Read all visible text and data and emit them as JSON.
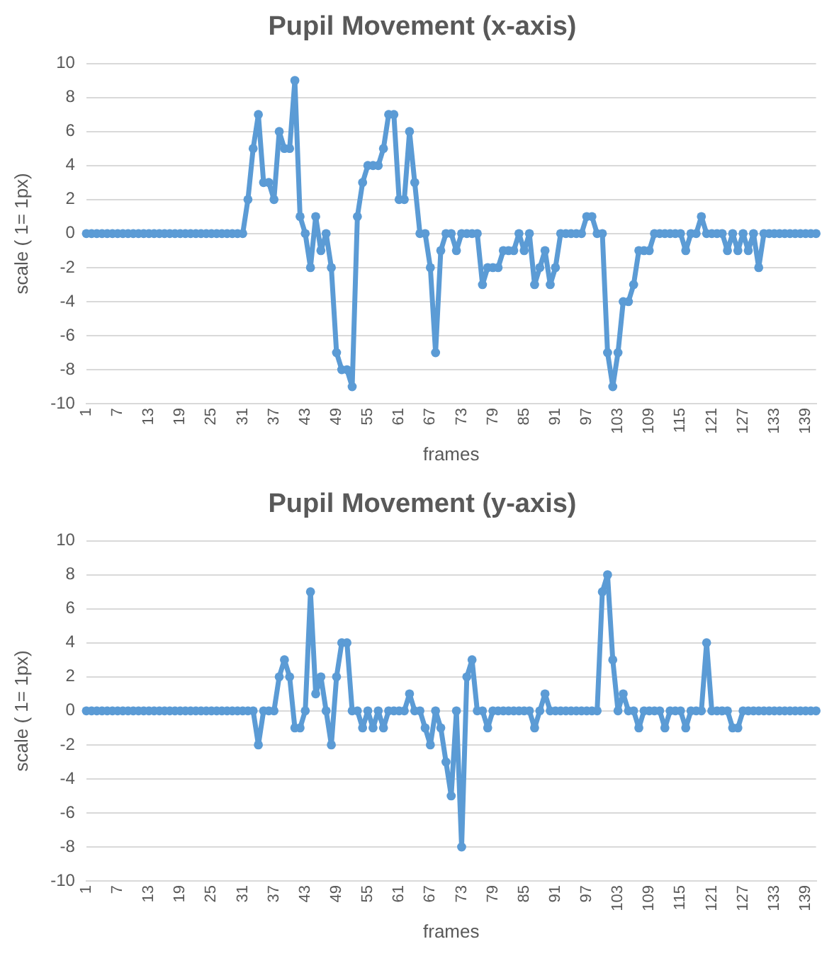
{
  "chart_data": [
    {
      "type": "line",
      "title": "Pupil Movement (x-axis)",
      "xlabel": "frames",
      "ylabel": "scale ( 1= 1px)",
      "categories": [
        "1",
        null,
        null,
        null,
        null,
        null,
        "7",
        null,
        null,
        null,
        null,
        null,
        "13",
        null,
        null,
        null,
        null,
        null,
        "19",
        null,
        null,
        null,
        null,
        null,
        "25",
        null,
        null,
        null,
        null,
        null,
        "31",
        null,
        null,
        null,
        null,
        null,
        "37",
        null,
        null,
        null,
        null,
        null,
        "43",
        null,
        null,
        null,
        null,
        null,
        "49",
        null,
        null,
        null,
        null,
        null,
        "55",
        null,
        null,
        null,
        null,
        null,
        "61",
        null,
        null,
        null,
        null,
        null,
        "67",
        null,
        null,
        null,
        null,
        null,
        "73",
        null,
        null,
        null,
        null,
        null,
        "79",
        null,
        null,
        null,
        null,
        null,
        "85",
        null,
        null,
        null,
        null,
        null,
        "91",
        null,
        null,
        null,
        null,
        null,
        "97",
        null,
        null,
        null,
        null,
        null,
        "103",
        null,
        null,
        null,
        null,
        null,
        "109",
        null,
        null,
        null,
        null,
        null,
        "115",
        null,
        null,
        null,
        null,
        null,
        "121",
        null,
        null,
        null,
        null,
        null,
        "127",
        null,
        null,
        null,
        null,
        null,
        "133",
        null,
        null,
        null,
        null,
        null,
        "139",
        null,
        null
      ],
      "series": [
        {
          "color": "#5b9bd5",
          "values": [
            0,
            0,
            0,
            0,
            0,
            0,
            0,
            0,
            0,
            0,
            0,
            0,
            0,
            0,
            0,
            0,
            0,
            0,
            0,
            0,
            0,
            0,
            0,
            0,
            0,
            0,
            0,
            0,
            0,
            0,
            0,
            2,
            5,
            7,
            3,
            3,
            2,
            6,
            5,
            5,
            9,
            1,
            0,
            -2,
            1,
            -1,
            0,
            -2,
            -7,
            -8,
            -8,
            -9,
            1,
            3,
            4,
            4,
            4,
            5,
            7,
            7,
            2,
            2,
            6,
            3,
            0,
            0,
            -2,
            -7,
            -1,
            0,
            0,
            -1,
            0,
            0,
            0,
            0,
            -3,
            -2,
            -2,
            -2,
            -1,
            -1,
            -1,
            0,
            -1,
            0,
            -3,
            -2,
            -1,
            -3,
            -2,
            0,
            0,
            0,
            0,
            0,
            1,
            1,
            0,
            0,
            -7,
            -9,
            -7,
            -4,
            -4,
            -3,
            -1,
            -1,
            -1,
            0,
            0,
            0,
            0,
            0,
            0,
            -1,
            0,
            0,
            1,
            0,
            0,
            0,
            0,
            -1,
            0,
            -1,
            0,
            -1,
            0,
            -2,
            0,
            0,
            0,
            0,
            0,
            0,
            0,
            0,
            0,
            0,
            0
          ]
        }
      ],
      "ylim": [
        -10,
        10
      ],
      "yticks": [
        -10,
        -8,
        -6,
        -4,
        -2,
        0,
        2,
        4,
        6,
        8,
        10
      ],
      "grid": "y",
      "legend": false,
      "marker": "circle",
      "line_style": "solid"
    },
    {
      "type": "line",
      "title": "Pupil Movement (y-axis)",
      "xlabel": "frames",
      "ylabel": "scale ( 1= 1px)",
      "categories": [
        "1",
        null,
        null,
        null,
        null,
        null,
        "7",
        null,
        null,
        null,
        null,
        null,
        "13",
        null,
        null,
        null,
        null,
        null,
        "19",
        null,
        null,
        null,
        null,
        null,
        "25",
        null,
        null,
        null,
        null,
        null,
        "31",
        null,
        null,
        null,
        null,
        null,
        "37",
        null,
        null,
        null,
        null,
        null,
        "43",
        null,
        null,
        null,
        null,
        null,
        "49",
        null,
        null,
        null,
        null,
        null,
        "55",
        null,
        null,
        null,
        null,
        null,
        "61",
        null,
        null,
        null,
        null,
        null,
        "67",
        null,
        null,
        null,
        null,
        null,
        "73",
        null,
        null,
        null,
        null,
        null,
        "79",
        null,
        null,
        null,
        null,
        null,
        "85",
        null,
        null,
        null,
        null,
        null,
        "91",
        null,
        null,
        null,
        null,
        null,
        "97",
        null,
        null,
        null,
        null,
        null,
        "103",
        null,
        null,
        null,
        null,
        null,
        "109",
        null,
        null,
        null,
        null,
        null,
        "115",
        null,
        null,
        null,
        null,
        null,
        "121",
        null,
        null,
        null,
        null,
        null,
        "127",
        null,
        null,
        null,
        null,
        null,
        "133",
        null,
        null,
        null,
        null,
        null,
        "139",
        null,
        null
      ],
      "series": [
        {
          "color": "#5b9bd5",
          "values": [
            0,
            0,
            0,
            0,
            0,
            0,
            0,
            0,
            0,
            0,
            0,
            0,
            0,
            0,
            0,
            0,
            0,
            0,
            0,
            0,
            0,
            0,
            0,
            0,
            0,
            0,
            0,
            0,
            0,
            0,
            0,
            0,
            0,
            -2,
            0,
            0,
            0,
            2,
            3,
            2,
            -1,
            -1,
            0,
            7,
            1,
            2,
            0,
            -2,
            2,
            4,
            4,
            0,
            0,
            -1,
            0,
            -1,
            0,
            -1,
            0,
            0,
            0,
            0,
            1,
            0,
            0,
            -1,
            -2,
            0,
            -1,
            -3,
            -5,
            0,
            -8,
            2,
            3,
            0,
            0,
            -1,
            0,
            0,
            0,
            0,
            0,
            0,
            0,
            0,
            -1,
            0,
            1,
            0,
            0,
            0,
            0,
            0,
            0,
            0,
            0,
            0,
            0,
            7,
            8,
            3,
            0,
            1,
            0,
            0,
            -1,
            0,
            0,
            0,
            0,
            -1,
            0,
            0,
            0,
            -1,
            0,
            0,
            0,
            4,
            0,
            0,
            0,
            0,
            -1,
            -1,
            0,
            0,
            0,
            0,
            0,
            0,
            0,
            0,
            0,
            0,
            0,
            0,
            0,
            0,
            0
          ]
        }
      ],
      "ylim": [
        -10,
        10
      ],
      "yticks": [
        -10,
        -8,
        -6,
        -4,
        -2,
        0,
        2,
        4,
        6,
        8,
        10
      ],
      "grid": "y",
      "legend": false,
      "marker": "circle",
      "line_style": "solid"
    }
  ]
}
